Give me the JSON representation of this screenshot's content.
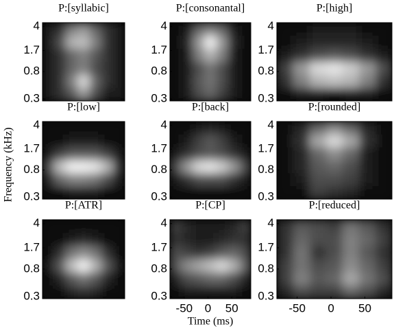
{
  "chart_data": [
    {
      "type": "heatmap",
      "title": "P:[syllabic]",
      "colormap": "gray",
      "xlim": [
        -80,
        90
      ],
      "ylim": [
        0.28,
        4.6
      ],
      "log_y": true,
      "yticks": [
        0.3,
        0.8,
        1.7,
        4
      ],
      "z": [
        [
          0.1,
          0.2,
          0.5,
          0.6,
          0.4,
          0.2,
          0.1
        ],
        [
          0.1,
          0.3,
          0.7,
          0.75,
          0.5,
          0.2,
          0.1
        ],
        [
          0.1,
          0.2,
          0.4,
          0.5,
          0.35,
          0.2,
          0.1
        ],
        [
          0.1,
          0.2,
          0.4,
          0.5,
          0.3,
          0.2,
          0.1
        ],
        [
          0.1,
          0.2,
          0.5,
          0.85,
          0.4,
          0.2,
          0.1
        ],
        [
          0.1,
          0.2,
          0.35,
          0.6,
          0.3,
          0.1,
          0.1
        ]
      ]
    },
    {
      "type": "heatmap",
      "title": "P:[consonantal]",
      "colormap": "gray",
      "xlim": [
        -80,
        90
      ],
      "ylim": [
        0.28,
        4.6
      ],
      "log_y": true,
      "yticks": [
        0.3,
        0.8,
        1.7,
        4
      ],
      "z": [
        [
          0.05,
          0.1,
          0.4,
          0.5,
          0.4,
          0.1,
          0.05
        ],
        [
          0.05,
          0.15,
          0.6,
          0.95,
          0.6,
          0.15,
          0.05
        ],
        [
          0.05,
          0.1,
          0.5,
          0.7,
          0.5,
          0.1,
          0.05
        ],
        [
          0.05,
          0.1,
          0.3,
          0.45,
          0.3,
          0.1,
          0.05
        ],
        [
          0.05,
          0.1,
          0.35,
          0.45,
          0.3,
          0.1,
          0.05
        ],
        [
          0.05,
          0.1,
          0.3,
          0.4,
          0.25,
          0.1,
          0.05
        ]
      ]
    },
    {
      "type": "heatmap",
      "title": "P:[high]",
      "colormap": "gray",
      "xlim": [
        -80,
        90
      ],
      "ylim": [
        0.28,
        4.6
      ],
      "log_y": true,
      "yticks": [
        0.3,
        0.8,
        1.7,
        4
      ],
      "z": [
        [
          0.05,
          0.05,
          0.1,
          0.1,
          0.1,
          0.05,
          0.05
        ],
        [
          0.05,
          0.1,
          0.15,
          0.15,
          0.15,
          0.1,
          0.05
        ],
        [
          0.1,
          0.2,
          0.3,
          0.35,
          0.3,
          0.2,
          0.1
        ],
        [
          0.25,
          0.6,
          0.85,
          0.9,
          0.8,
          0.6,
          0.3
        ],
        [
          0.2,
          0.5,
          0.7,
          0.75,
          0.7,
          0.5,
          0.2
        ],
        [
          0.05,
          0.1,
          0.1,
          0.05,
          0.1,
          0.1,
          0.05
        ]
      ]
    },
    {
      "type": "heatmap",
      "title": "P:[low]",
      "colormap": "gray",
      "xlim": [
        -80,
        90
      ],
      "ylim": [
        0.28,
        4.6
      ],
      "log_y": true,
      "yticks": [
        0.3,
        0.8,
        1.7,
        4
      ],
      "z": [
        [
          0.05,
          0.05,
          0.05,
          0.05,
          0.05,
          0.05,
          0.05
        ],
        [
          0.05,
          0.05,
          0.1,
          0.1,
          0.1,
          0.05,
          0.05
        ],
        [
          0.1,
          0.25,
          0.35,
          0.35,
          0.35,
          0.25,
          0.1
        ],
        [
          0.3,
          0.75,
          0.95,
          0.95,
          0.9,
          0.7,
          0.2
        ],
        [
          0.15,
          0.4,
          0.5,
          0.5,
          0.45,
          0.3,
          0.1
        ],
        [
          0.05,
          0.05,
          0.1,
          0.1,
          0.1,
          0.05,
          0.05
        ]
      ]
    },
    {
      "type": "heatmap",
      "title": "P:[back]",
      "colormap": "gray",
      "xlim": [
        -80,
        90
      ],
      "ylim": [
        0.28,
        4.6
      ],
      "log_y": true,
      "yticks": [
        0.3,
        0.8,
        1.7,
        4
      ],
      "z": [
        [
          0.05,
          0.05,
          0.1,
          0.15,
          0.1,
          0.05,
          0.05
        ],
        [
          0.05,
          0.1,
          0.25,
          0.35,
          0.25,
          0.1,
          0.05
        ],
        [
          0.1,
          0.2,
          0.3,
          0.35,
          0.3,
          0.2,
          0.1
        ],
        [
          0.3,
          0.6,
          0.85,
          0.9,
          0.8,
          0.6,
          0.3
        ],
        [
          0.1,
          0.2,
          0.3,
          0.3,
          0.3,
          0.2,
          0.1
        ],
        [
          0.05,
          0.05,
          0.05,
          0.05,
          0.05,
          0.05,
          0.05
        ]
      ]
    },
    {
      "type": "heatmap",
      "title": "P:[rounded]",
      "colormap": "gray",
      "xlim": [
        -80,
        90
      ],
      "ylim": [
        0.28,
        4.6
      ],
      "log_y": true,
      "yticks": [
        0.3,
        0.8,
        1.7,
        4
      ],
      "z": [
        [
          0.05,
          0.15,
          0.4,
          0.55,
          0.4,
          0.15,
          0.05
        ],
        [
          0.05,
          0.2,
          0.65,
          0.85,
          0.65,
          0.2,
          0.05
        ],
        [
          0.05,
          0.15,
          0.4,
          0.55,
          0.4,
          0.1,
          0.05
        ],
        [
          0.05,
          0.15,
          0.35,
          0.4,
          0.3,
          0.1,
          0.05
        ],
        [
          0.05,
          0.1,
          0.3,
          0.3,
          0.25,
          0.1,
          0.05
        ],
        [
          0.05,
          0.05,
          0.25,
          0.2,
          0.15,
          0.05,
          0.05
        ]
      ]
    },
    {
      "type": "heatmap",
      "title": "P:[ATR]",
      "colormap": "gray",
      "xlim": [
        -80,
        90
      ],
      "ylim": [
        0.28,
        4.6
      ],
      "log_y": true,
      "yticks": [
        0.3,
        0.8,
        1.7,
        4
      ],
      "z": [
        [
          0.05,
          0.05,
          0.05,
          0.05,
          0.05,
          0.05,
          0.05
        ],
        [
          0.05,
          0.05,
          0.1,
          0.15,
          0.1,
          0.05,
          0.05
        ],
        [
          0.05,
          0.2,
          0.45,
          0.55,
          0.45,
          0.2,
          0.05
        ],
        [
          0.1,
          0.35,
          0.75,
          0.95,
          0.7,
          0.35,
          0.1
        ],
        [
          0.05,
          0.15,
          0.35,
          0.45,
          0.35,
          0.15,
          0.05
        ],
        [
          0.05,
          0.05,
          0.15,
          0.2,
          0.15,
          0.05,
          0.05
        ]
      ]
    },
    {
      "type": "heatmap",
      "title": "P:[CP]",
      "colormap": "gray",
      "xlim": [
        -80,
        90
      ],
      "ylim": [
        0.28,
        4.6
      ],
      "log_y": true,
      "yticks": [
        0.3,
        0.8,
        1.7,
        4
      ],
      "xticks": [
        -50,
        0,
        50
      ],
      "xlabel": "Time (ms)",
      "z": [
        [
          0.25,
          0.15,
          0.1,
          0.1,
          0.1,
          0.15,
          0.25
        ],
        [
          0.2,
          0.15,
          0.1,
          0.1,
          0.15,
          0.2,
          0.2
        ],
        [
          0.3,
          0.25,
          0.2,
          0.25,
          0.35,
          0.4,
          0.3
        ],
        [
          0.35,
          0.55,
          0.65,
          0.75,
          0.85,
          0.7,
          0.4
        ],
        [
          0.15,
          0.3,
          0.35,
          0.4,
          0.4,
          0.3,
          0.15
        ],
        [
          0.05,
          0.1,
          0.1,
          0.1,
          0.1,
          0.1,
          0.05
        ]
      ]
    },
    {
      "type": "heatmap",
      "title": "P:[reduced]",
      "colormap": "gray",
      "xlim": [
        -80,
        90
      ],
      "ylim": [
        0.28,
        4.6
      ],
      "log_y": true,
      "yticks": [
        0.3,
        0.8,
        1.7,
        4
      ],
      "xticks": [
        -50,
        0,
        50
      ],
      "z": [
        [
          0.2,
          0.35,
          0.3,
          0.25,
          0.45,
          0.35,
          0.2
        ],
        [
          0.2,
          0.4,
          0.3,
          0.3,
          0.5,
          0.4,
          0.25
        ],
        [
          0.2,
          0.45,
          0.2,
          0.3,
          0.5,
          0.35,
          0.2
        ],
        [
          0.25,
          0.45,
          0.3,
          0.35,
          0.55,
          0.4,
          0.25
        ],
        [
          0.25,
          0.5,
          0.35,
          0.4,
          0.65,
          0.45,
          0.3
        ],
        [
          0.15,
          0.3,
          0.25,
          0.25,
          0.4,
          0.3,
          0.15
        ]
      ]
    },
    {
      "type": "label",
      "ylabel": "Frequency (kHz)"
    }
  ]
}
